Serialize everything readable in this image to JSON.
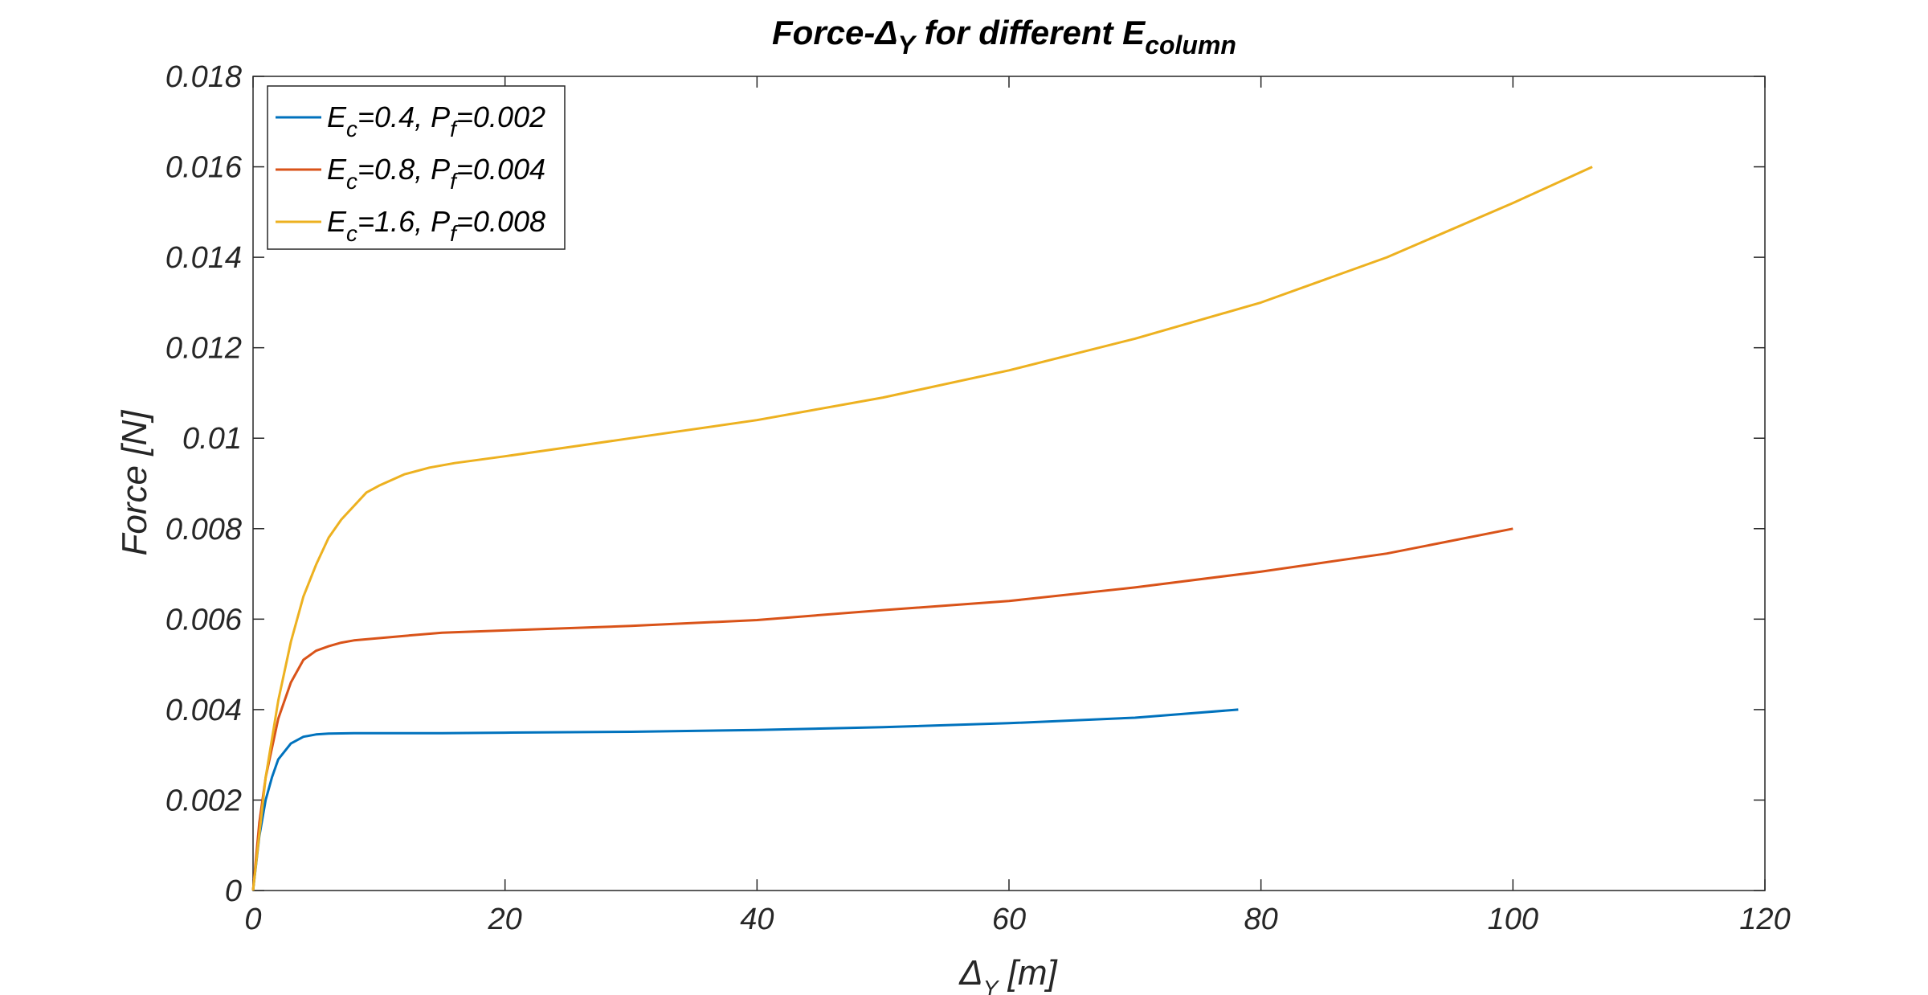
{
  "chart_data": {
    "type": "line",
    "title": {
      "main": "Force-Δ",
      "main_sub": "Y",
      "rest": " for different E",
      "rest_sub": "column"
    },
    "xlabel": {
      "main": "Δ",
      "sub": "Y",
      "rest": " [m]"
    },
    "ylabel": "Force [N]",
    "xlim": [
      0,
      120
    ],
    "ylim": [
      0,
      0.018
    ],
    "xticks": [
      0,
      20,
      40,
      60,
      80,
      100,
      120
    ],
    "xtick_labels": [
      "0",
      "20",
      "40",
      "60",
      "80",
      "100",
      "120"
    ],
    "yticks": [
      0,
      0.002,
      0.004,
      0.006,
      0.008,
      0.01,
      0.012,
      0.014,
      0.016,
      0.018
    ],
    "ytick_labels": [
      "0",
      "0.002",
      "0.004",
      "0.006",
      "0.008",
      "0.01",
      "0.012",
      "0.014",
      "0.016",
      "0.018"
    ],
    "grid": false,
    "legend_position": "top-left",
    "series": [
      {
        "legend": {
          "e_main": "E",
          "e_sub": "c",
          "e_val": "=0.4, P",
          "p_sub": "f",
          "p_val": "=0.002"
        },
        "color": "#0072BD",
        "x": [
          0,
          0.5,
          1,
          1.5,
          2,
          3,
          4,
          5,
          6,
          8,
          10,
          15,
          20,
          30,
          40,
          50,
          60,
          70,
          78.2
        ],
        "y": [
          0,
          0.0012,
          0.002,
          0.0025,
          0.0029,
          0.00325,
          0.0034,
          0.00345,
          0.00347,
          0.00348,
          0.00348,
          0.00348,
          0.00349,
          0.00351,
          0.00355,
          0.00361,
          0.0037,
          0.00382,
          0.004
        ]
      },
      {
        "legend": {
          "e_main": "E",
          "e_sub": "c",
          "e_val": "=0.8, P",
          "p_sub": "f",
          "p_val": "=0.004"
        },
        "color": "#D95319",
        "x": [
          0,
          0.5,
          1,
          2,
          3,
          4,
          5,
          6,
          7,
          8,
          10,
          12,
          15,
          20,
          30,
          40,
          50,
          60,
          70,
          80,
          90,
          100
        ],
        "y": [
          0,
          0.0015,
          0.0025,
          0.0038,
          0.0046,
          0.0051,
          0.0053,
          0.0054,
          0.00548,
          0.00553,
          0.00558,
          0.00563,
          0.0057,
          0.00575,
          0.00585,
          0.00598,
          0.0062,
          0.0064,
          0.0067,
          0.00705,
          0.00745,
          0.008
        ]
      },
      {
        "legend": {
          "e_main": "E",
          "e_sub": "c",
          "e_val": "=1.6, P",
          "p_sub": "f",
          "p_val": "=0.008"
        },
        "color": "#EDB120",
        "x": [
          0,
          1,
          2,
          3,
          4,
          5,
          6,
          7,
          8,
          9,
          10,
          12,
          14,
          16,
          20,
          25,
          30,
          40,
          50,
          60,
          70,
          80,
          90,
          100,
          106.3
        ],
        "y": [
          0,
          0.0025,
          0.0042,
          0.0055,
          0.0065,
          0.0072,
          0.0078,
          0.0082,
          0.0085,
          0.0088,
          0.00895,
          0.0092,
          0.00935,
          0.00945,
          0.0096,
          0.0098,
          0.01,
          0.0104,
          0.0109,
          0.0115,
          0.0122,
          0.013,
          0.014,
          0.0152,
          0.016
        ]
      }
    ]
  }
}
